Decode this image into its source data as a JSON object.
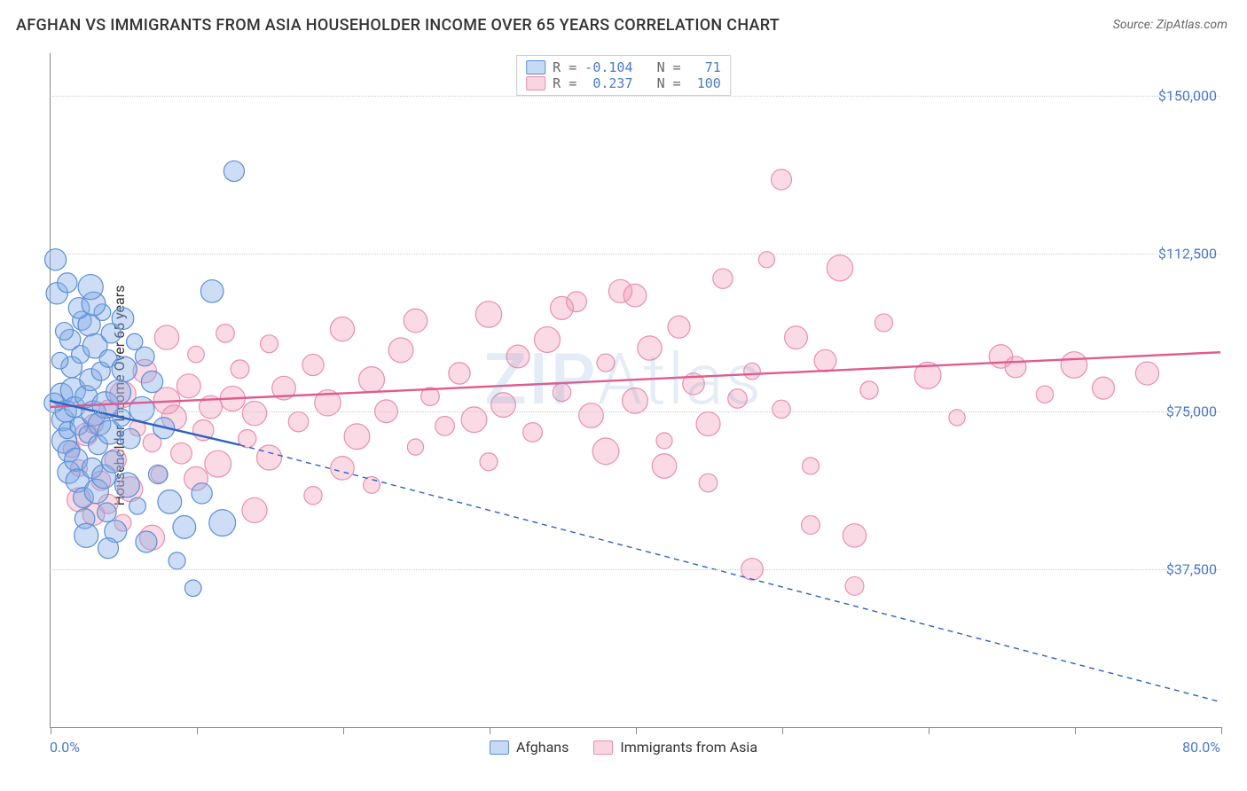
{
  "title": "AFGHAN VS IMMIGRANTS FROM ASIA HOUSEHOLDER INCOME OVER 65 YEARS CORRELATION CHART",
  "source": "Source: ZipAtlas.com",
  "watermark": {
    "left": "ZIP",
    "right": "Atlas"
  },
  "ylabel": "Householder Income Over 65 years",
  "chart": {
    "type": "scatter-with-regression",
    "background_color": "#ffffff",
    "grid_color": "#cccccc",
    "axis_color": "#888888",
    "tick_label_color": "#4a7ac7",
    "xlim": [
      0.0,
      80.0
    ],
    "ylim": [
      0,
      160000
    ],
    "yticks": [
      37500,
      75000,
      112500,
      150000
    ],
    "ytick_labels": [
      "$37,500",
      "$75,000",
      "$112,500",
      "$150,000"
    ],
    "xtick_positions": [
      0,
      10,
      20,
      30,
      40,
      50,
      60,
      70,
      80
    ],
    "xaxis_min_label": "0.0%",
    "xaxis_max_label": "80.0%",
    "marker_radius_base": 9,
    "marker_radius_jitter": 6,
    "marker_stroke_width": 1.2,
    "line_width_solid": 2.4,
    "line_width_dash": 1.4,
    "dash_pattern": "6 5"
  },
  "legend_top": {
    "rows": [
      {
        "swatch": "blue",
        "r_label": "R = ",
        "r_value": "-0.104",
        "n_label": "   N = ",
        "n_value": "  71"
      },
      {
        "swatch": "pink",
        "r_label": "R = ",
        "r_value": " 0.237",
        "n_label": "   N = ",
        "n_value": " 100"
      }
    ]
  },
  "legend_bottom": {
    "items": [
      {
        "swatch": "blue",
        "label": "Afghans"
      },
      {
        "swatch": "pink",
        "label": "Immigrants from Asia"
      }
    ]
  },
  "series": {
    "afghans": {
      "color_fill": "rgba(130,170,230,0.40)",
      "color_stroke": "#5b8fd6",
      "regression": {
        "x1": 0,
        "y1": 77500,
        "x2": 13,
        "y2": 67000,
        "solid_end_x": 13,
        "dash_to_x": 80,
        "dash_to_y": 6000,
        "color": "#2b63c2"
      },
      "points": [
        [
          0.4,
          111000
        ],
        [
          0.5,
          103000
        ],
        [
          0.8,
          79000
        ],
        [
          0.9,
          73000
        ],
        [
          1.0,
          68000
        ],
        [
          1.1,
          75000
        ],
        [
          1.2,
          70500
        ],
        [
          1.3,
          65500
        ],
        [
          1.3,
          60500
        ],
        [
          1.4,
          92000
        ],
        [
          1.5,
          85500
        ],
        [
          1.6,
          80000
        ],
        [
          1.7,
          76000
        ],
        [
          1.8,
          63500
        ],
        [
          1.9,
          58500
        ],
        [
          2.0,
          71500
        ],
        [
          2.1,
          88500
        ],
        [
          2.2,
          96500
        ],
        [
          2.3,
          54500
        ],
        [
          2.4,
          49500
        ],
        [
          2.5,
          78500
        ],
        [
          2.6,
          69500
        ],
        [
          2.7,
          95500
        ],
        [
          2.8,
          82500
        ],
        [
          2.9,
          61500
        ],
        [
          3.0,
          74500
        ],
        [
          3.1,
          90500
        ],
        [
          3.2,
          56000
        ],
        [
          3.3,
          67000
        ],
        [
          3.4,
          72000
        ],
        [
          3.5,
          84500
        ],
        [
          3.6,
          98500
        ],
        [
          3.7,
          59500
        ],
        [
          3.8,
          76500
        ],
        [
          3.9,
          51000
        ],
        [
          4.0,
          87500
        ],
        [
          4.1,
          70000
        ],
        [
          4.2,
          93500
        ],
        [
          4.3,
          63000
        ],
        [
          4.5,
          46500
        ],
        [
          4.7,
          79500
        ],
        [
          4.9,
          73500
        ],
        [
          5.1,
          85000
        ],
        [
          5.3,
          57500
        ],
        [
          5.5,
          68500
        ],
        [
          5.8,
          91500
        ],
        [
          6.0,
          52500
        ],
        [
          6.3,
          75500
        ],
        [
          6.6,
          44000
        ],
        [
          7.0,
          82000
        ],
        [
          7.4,
          60000
        ],
        [
          7.8,
          71000
        ],
        [
          8.2,
          53500
        ],
        [
          8.7,
          39500
        ],
        [
          9.2,
          47500
        ],
        [
          9.8,
          33000
        ],
        [
          10.4,
          55500
        ],
        [
          11.1,
          103500
        ],
        [
          11.8,
          48500
        ],
        [
          12.6,
          132000
        ],
        [
          2.0,
          99500
        ],
        [
          1.2,
          105500
        ],
        [
          0.7,
          87000
        ],
        [
          3.0,
          100500
        ],
        [
          4.0,
          42500
        ],
        [
          2.5,
          45500
        ],
        [
          6.5,
          88000
        ],
        [
          5.0,
          97000
        ],
        [
          0.3,
          77000
        ],
        [
          2.8,
          104500
        ],
        [
          1.0,
          94000
        ]
      ]
    },
    "asia": {
      "color_fill": "rgba(240,150,180,0.35)",
      "color_stroke": "#e88fb0",
      "regression": {
        "x1": 0,
        "y1": 76000,
        "x2": 80,
        "y2": 89000,
        "solid_end_x": 80,
        "color": "#e15a8e"
      },
      "points": [
        [
          1.5,
          66000
        ],
        [
          2.0,
          61500
        ],
        [
          2.5,
          69500
        ],
        [
          3.0,
          72000
        ],
        [
          3.5,
          58500
        ],
        [
          4.0,
          75500
        ],
        [
          4.5,
          63500
        ],
        [
          5.0,
          79000
        ],
        [
          5.5,
          56500
        ],
        [
          6.0,
          71000
        ],
        [
          6.5,
          84500
        ],
        [
          7.0,
          67500
        ],
        [
          7.5,
          60000
        ],
        [
          8.0,
          77500
        ],
        [
          8.5,
          73500
        ],
        [
          9.0,
          65000
        ],
        [
          9.5,
          81000
        ],
        [
          10.0,
          88500
        ],
        [
          10.5,
          70500
        ],
        [
          11.0,
          76000
        ],
        [
          11.5,
          62500
        ],
        [
          12.0,
          93500
        ],
        [
          12.5,
          78000
        ],
        [
          13.0,
          85000
        ],
        [
          13.5,
          68500
        ],
        [
          14.0,
          74500
        ],
        [
          15.0,
          91000
        ],
        [
          16.0,
          80500
        ],
        [
          17.0,
          72500
        ],
        [
          18.0,
          86000
        ],
        [
          19.0,
          77000
        ],
        [
          20.0,
          94500
        ],
        [
          21.0,
          69000
        ],
        [
          22.0,
          82500
        ],
        [
          23.0,
          75000
        ],
        [
          24.0,
          89500
        ],
        [
          25.0,
          96500
        ],
        [
          26.0,
          78500
        ],
        [
          27.0,
          71500
        ],
        [
          28.0,
          84000
        ],
        [
          29.0,
          73000
        ],
        [
          30.0,
          98000
        ],
        [
          31.0,
          76500
        ],
        [
          32.0,
          88000
        ],
        [
          33.0,
          70000
        ],
        [
          34.0,
          92000
        ],
        [
          35.0,
          79500
        ],
        [
          36.0,
          101000
        ],
        [
          37.0,
          74000
        ],
        [
          38.0,
          86500
        ],
        [
          39.0,
          103500
        ],
        [
          40.0,
          77500
        ],
        [
          41.0,
          90000
        ],
        [
          42.0,
          68000
        ],
        [
          43.0,
          95000
        ],
        [
          44.0,
          81500
        ],
        [
          45.0,
          72000
        ],
        [
          46.0,
          106500
        ],
        [
          47.0,
          78000
        ],
        [
          48.0,
          84500
        ],
        [
          49.0,
          111000
        ],
        [
          50.0,
          75500
        ],
        [
          51.0,
          92500
        ],
        [
          52.0,
          62000
        ],
        [
          53.0,
          87000
        ],
        [
          54.0,
          109000
        ],
        [
          55.0,
          45500
        ],
        [
          56.0,
          80000
        ],
        [
          57.0,
          96000
        ],
        [
          2.0,
          54000
        ],
        [
          3.0,
          50500
        ],
        [
          4.0,
          53000
        ],
        [
          5.0,
          48500
        ],
        [
          7.0,
          45000
        ],
        [
          10.0,
          59000
        ],
        [
          15.0,
          64000
        ],
        [
          20.0,
          61500
        ],
        [
          25.0,
          66500
        ],
        [
          30.0,
          63000
        ],
        [
          35.0,
          99500
        ],
        [
          40.0,
          102500
        ],
        [
          45.0,
          58000
        ],
        [
          50.0,
          130000
        ],
        [
          52.0,
          48000
        ],
        [
          55.0,
          33500
        ],
        [
          48.0,
          37500
        ],
        [
          60.0,
          83500
        ],
        [
          62.0,
          73500
        ],
        [
          65.0,
          88000
        ],
        [
          66.0,
          85500
        ],
        [
          68.0,
          79000
        ],
        [
          70.0,
          86000
        ],
        [
          72.0,
          80500
        ],
        [
          75.0,
          84000
        ],
        [
          38.0,
          65500
        ],
        [
          42.0,
          62000
        ],
        [
          14.0,
          51500
        ],
        [
          18.0,
          55000
        ],
        [
          22.0,
          57500
        ],
        [
          8.0,
          92500
        ]
      ]
    }
  }
}
